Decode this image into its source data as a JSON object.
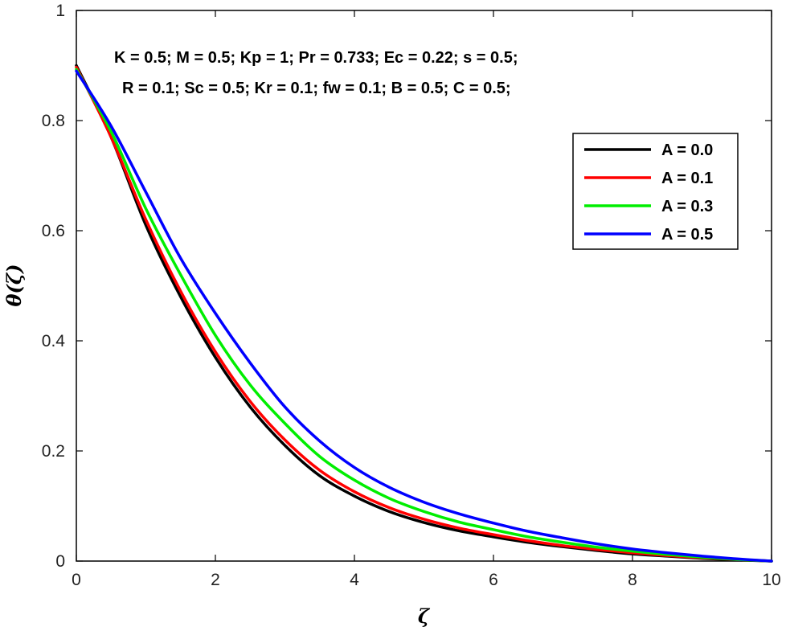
{
  "chart_data": {
    "type": "line",
    "xlabel": "ζ",
    "ylabel": "θ(ζ)",
    "xlim": [
      0,
      10
    ],
    "ylim": [
      0,
      1
    ],
    "xticks": [
      0,
      2,
      4,
      6,
      8,
      10
    ],
    "yticks": [
      0,
      0.2,
      0.4,
      0.6,
      0.8,
      1
    ],
    "ytick_labels": [
      "0",
      "0.2",
      "0.4",
      "0.6",
      "0.8",
      "1"
    ],
    "grid": false,
    "legend_position": "top-right",
    "annotations": [
      "K = 0.5; M = 0.5; Kp = 1; Pr = 0.733; Ec = 0.22; s = 0.5;",
      "R = 0.1;  Sc = 0.5; Kr = 0.1; fw = 0.1;  B = 0.5; C = 0.5;"
    ],
    "x": [
      0,
      0.5,
      1,
      1.5,
      2,
      2.5,
      3,
      3.5,
      4,
      4.5,
      5,
      5.5,
      6,
      6.5,
      7,
      7.5,
      8,
      8.5,
      9,
      9.5,
      10
    ],
    "series": [
      {
        "name": "A = 0.0",
        "color": "#000000",
        "values": [
          0.9,
          0.77,
          0.61,
          0.48,
          0.37,
          0.28,
          0.21,
          0.155,
          0.118,
          0.09,
          0.07,
          0.055,
          0.044,
          0.034,
          0.026,
          0.019,
          0.013,
          0.009,
          0.005,
          0.002,
          0.0
        ]
      },
      {
        "name": "A = 0.1",
        "color": "#ff0000",
        "values": [
          0.897,
          0.77,
          0.62,
          0.49,
          0.38,
          0.29,
          0.22,
          0.165,
          0.126,
          0.097,
          0.076,
          0.06,
          0.048,
          0.037,
          0.028,
          0.021,
          0.015,
          0.01,
          0.006,
          0.003,
          0.0
        ]
      },
      {
        "name": "A = 0.3",
        "color": "#00ee00",
        "values": [
          0.893,
          0.78,
          0.64,
          0.52,
          0.41,
          0.32,
          0.25,
          0.19,
          0.147,
          0.114,
          0.09,
          0.071,
          0.057,
          0.044,
          0.034,
          0.025,
          0.018,
          0.012,
          0.007,
          0.003,
          0.0
        ]
      },
      {
        "name": "A = 0.5",
        "color": "#0000ff",
        "values": [
          0.89,
          0.79,
          0.67,
          0.55,
          0.45,
          0.36,
          0.28,
          0.218,
          0.17,
          0.134,
          0.107,
          0.086,
          0.069,
          0.054,
          0.042,
          0.031,
          0.022,
          0.015,
          0.009,
          0.004,
          0.0
        ]
      }
    ]
  }
}
